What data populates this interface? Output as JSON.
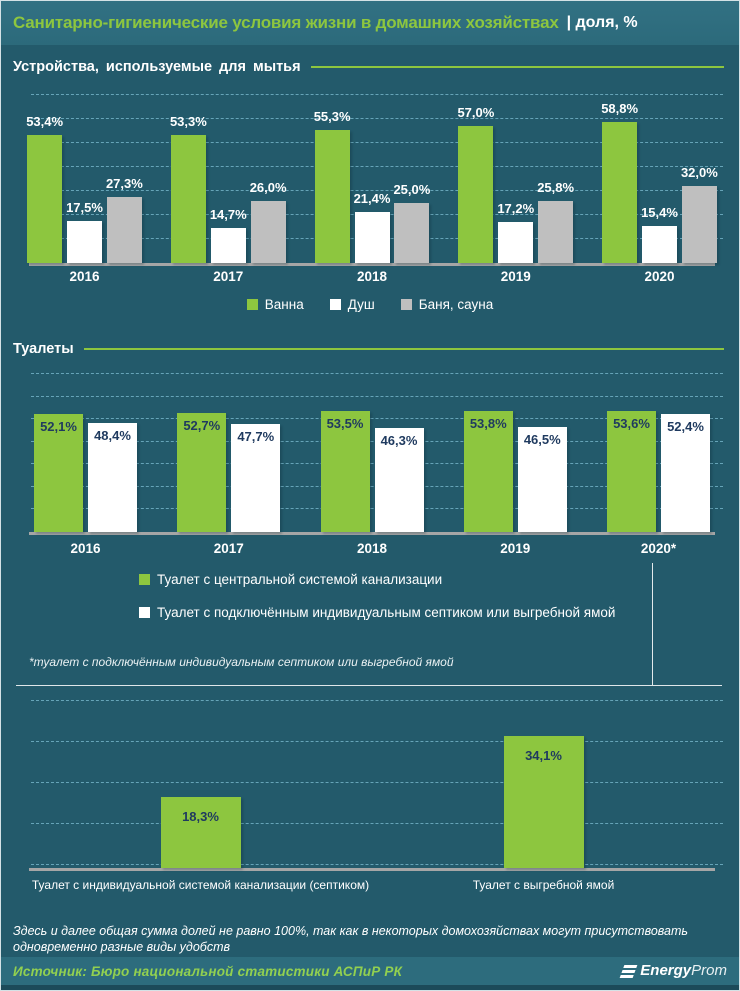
{
  "header": {
    "title": "Санитарно-гигиенические условия жизни в домашних хозяйствах",
    "subtitle": "| доля, %"
  },
  "sections": {
    "washing": {
      "heading": "Устройства,  используемые  для мытья"
    },
    "toilets": {
      "heading": "Туалеты",
      "footnote": "*туалет с подключённым индивидуальным септиком или выгребной ямой"
    }
  },
  "chart_data": [
    {
      "type": "bar",
      "title": "Устройства, используемые для мытья",
      "categories": [
        "2016",
        "2017",
        "2018",
        "2019",
        "2020"
      ],
      "series": [
        {
          "name": "Ванна",
          "color": "#8dc63f",
          "values": [
            53.4,
            53.3,
            55.3,
            57.0,
            58.8
          ]
        },
        {
          "name": "Душ",
          "color": "#ffffff",
          "values": [
            17.5,
            14.7,
            21.4,
            17.2,
            15.4
          ]
        },
        {
          "name": "Баня, сауна",
          "color": "#bfbfbf",
          "values": [
            27.3,
            26.0,
            25.0,
            25.8,
            32.0
          ]
        }
      ],
      "ylim": [
        0,
        70
      ],
      "grid": true,
      "legend_position": "bottom-center",
      "value_label_format": "0,0%"
    },
    {
      "type": "bar",
      "title": "Туалеты",
      "categories": [
        "2016",
        "2017",
        "2018",
        "2019",
        "2020*"
      ],
      "series": [
        {
          "name": "Туалет с центральной системой канализации",
          "color": "#8dc63f",
          "values": [
            52.1,
            52.7,
            53.5,
            53.8,
            53.6
          ]
        },
        {
          "name": "Туалет с подключённым индивидуальным септиком или выгребной ямой",
          "color": "#ffffff",
          "values": [
            48.4,
            47.7,
            46.3,
            46.5,
            52.4
          ]
        }
      ],
      "ylim": [
        0,
        70
      ],
      "grid": true,
      "legend_position": "bottom-left",
      "value_label_format": "0,0%"
    },
    {
      "type": "bar",
      "categories": [
        "Туалет с индивидуальной системой канализации (септиком)",
        "Туалет с выгребной ямой"
      ],
      "values": [
        18.3,
        34.1
      ],
      "color": "#8dc63f",
      "ylim": [
        0,
        43
      ],
      "grid": true,
      "value_label_format": "0,0%"
    }
  ],
  "notes": {
    "general": "Здесь и далее общая сумма долей не равно 100%, так как в некоторых домохозяйствах могут присутствовать одновременно разные виды удобств"
  },
  "footer": {
    "source": "Источник: Бюро национальной  статистики АСПиР РК",
    "logo_bold": "Energy",
    "logo_light": "Prom"
  },
  "colors": {
    "background": "#235a6b",
    "band": "#2e6e80",
    "accent_green": "#8dc63f",
    "bar_white": "#ffffff",
    "bar_gray": "#bfbfbf",
    "axis": "#a6a6a6",
    "grid": "#7ebdd1",
    "dark_label": "#1f3a5f",
    "source_green": "#92d050"
  }
}
